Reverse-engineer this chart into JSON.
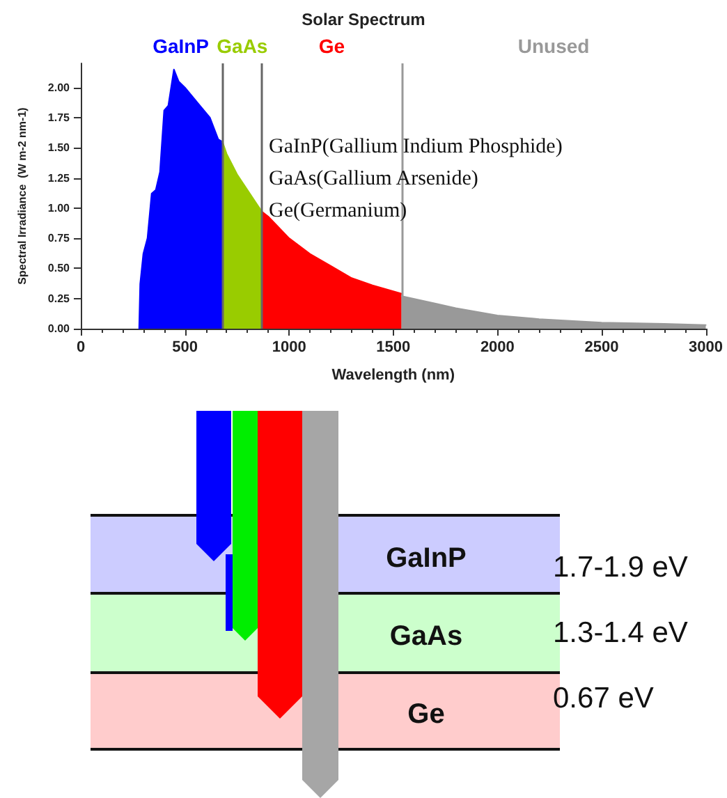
{
  "chart_data": {
    "type": "area",
    "title": "Solar Spectrum",
    "xlabel": "Wavelength (nm)",
    "ylabel": "Spectral Irradiance  (W m-2 nm-1)",
    "xlim": [
      0,
      3000
    ],
    "xticks": [
      0,
      500,
      1000,
      1500,
      2000,
      2500,
      3000
    ],
    "ylim": [
      0,
      2.2
    ],
    "yticks": [
      {
        "value": 0,
        "label": "0.00"
      },
      {
        "value": 0.25,
        "label": "0.25"
      },
      {
        "value": 0.5,
        "label": "0.50"
      },
      {
        "value": 0.75,
        "label": "0.75"
      },
      {
        "value": 1,
        "label": "1.00"
      },
      {
        "value": 1.25,
        "label": "1.25"
      },
      {
        "value": 1.5,
        "label": "1.50"
      },
      {
        "value": 1.75,
        "label": "1.75"
      },
      {
        "value": 2,
        "label": "2.00"
      }
    ],
    "grid": false,
    "marker": "none",
    "series": [
      {
        "name": "GaInP",
        "color": "#0000ff",
        "x": [
          280,
          285,
          300,
          320,
          340,
          360,
          380,
          400,
          420,
          447,
          470,
          500,
          567,
          620,
          660,
          680
        ],
        "values": [
          0,
          0.37,
          0.62,
          0.75,
          1.12,
          1.15,
          1.3,
          1.81,
          1.85,
          2.15,
          2.05,
          2.0,
          1.86,
          1.75,
          1.57,
          1.55
        ]
      },
      {
        "name": "GaAs",
        "color": "#99cc00",
        "x": [
          680,
          700,
          750,
          800,
          850,
          870
        ],
        "values": [
          1.55,
          1.45,
          1.28,
          1.15,
          1.02,
          0.97
        ]
      },
      {
        "name": "Ge",
        "color": "#ff0000",
        "x": [
          870,
          900,
          1000,
          1100,
          1200,
          1300,
          1400,
          1540
        ],
        "values": [
          0.97,
          0.93,
          0.75,
          0.62,
          0.52,
          0.42,
          0.36,
          0.29
        ]
      },
      {
        "name": "Unused",
        "color": "#999999",
        "x": [
          1540,
          1700,
          1800,
          2000,
          2200,
          2500,
          2800,
          3000
        ],
        "values": [
          0.27,
          0.21,
          0.17,
          0.11,
          0.08,
          0.05,
          0.04,
          0.03
        ]
      }
    ],
    "ref_lines": [
      {
        "axis": "x",
        "value": 680,
        "color": "#666666"
      },
      {
        "axis": "x",
        "value": 870,
        "color": "#666666"
      },
      {
        "axis": "x",
        "value": 1540,
        "color": "#999999"
      }
    ],
    "annotations": [
      "GaInP(Gallium Indium Phosphide)",
      "GaAs(Gallium Arsenide)",
      "Ge(Germanium)",
      "GaInP",
      "GaAs",
      "Ge",
      "1.7-1.9 eV",
      "1.3-1.4 eV",
      "0.67 eV"
    ]
  }
}
